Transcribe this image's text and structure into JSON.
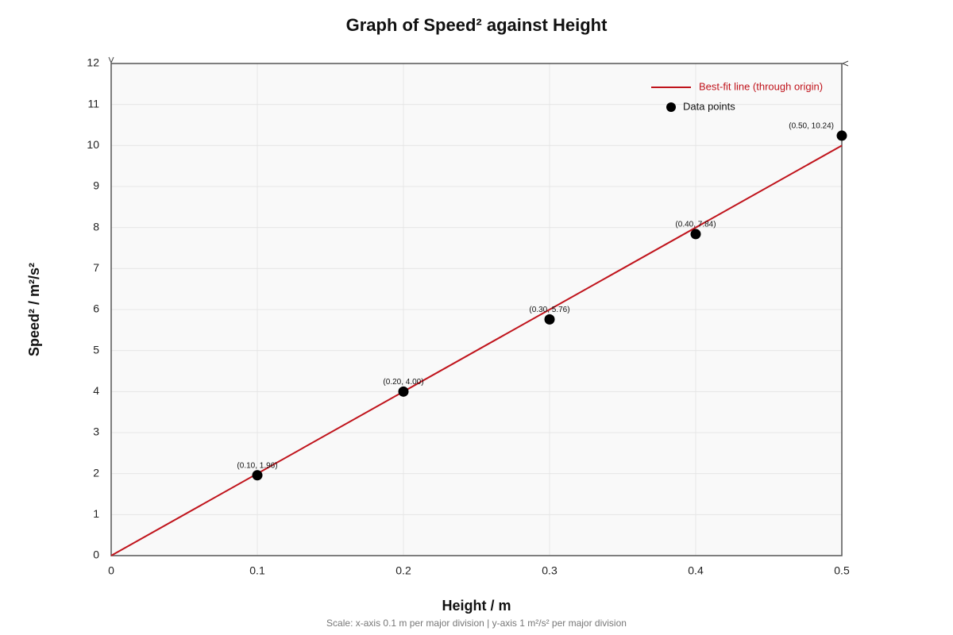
{
  "chart_data": {
    "type": "scatter",
    "title": "Graph of Speed² against Height",
    "x_label": "Height / m",
    "y_label": "Speed² / m²/s²",
    "footnote": "Scale: x-axis 0.1 m per major division | y-axis 1 m²/s² per major division",
    "xlim": [
      0,
      0.5
    ],
    "ylim": [
      0,
      12
    ],
    "xticks": [
      0,
      0.1,
      0.2,
      0.3,
      0.4,
      0.5
    ],
    "yticks": [
      0,
      1,
      2,
      3,
      4,
      5,
      6,
      7,
      8,
      9,
      10,
      11,
      12
    ],
    "grid": true,
    "legend": "upper right",
    "series": [
      {
        "name": "Best-fit line (through origin)",
        "type": "line",
        "color": "#c0141c",
        "x": [
          0,
          0.5
        ],
        "values": [
          0,
          10
        ]
      },
      {
        "name": "Data points",
        "type": "scatter",
        "color": "#000000",
        "x": [
          0.1,
          0.2,
          0.3,
          0.4,
          0.5
        ],
        "values": [
          1.96,
          4.0,
          5.76,
          7.84,
          10.24
        ],
        "value_labels": [
          "(0.10, 1.96)",
          "(0.20, 4.00)",
          "(0.30, 5.76)",
          "(0.40, 7.84)",
          "(0.50, 10.24)"
        ]
      }
    ]
  }
}
